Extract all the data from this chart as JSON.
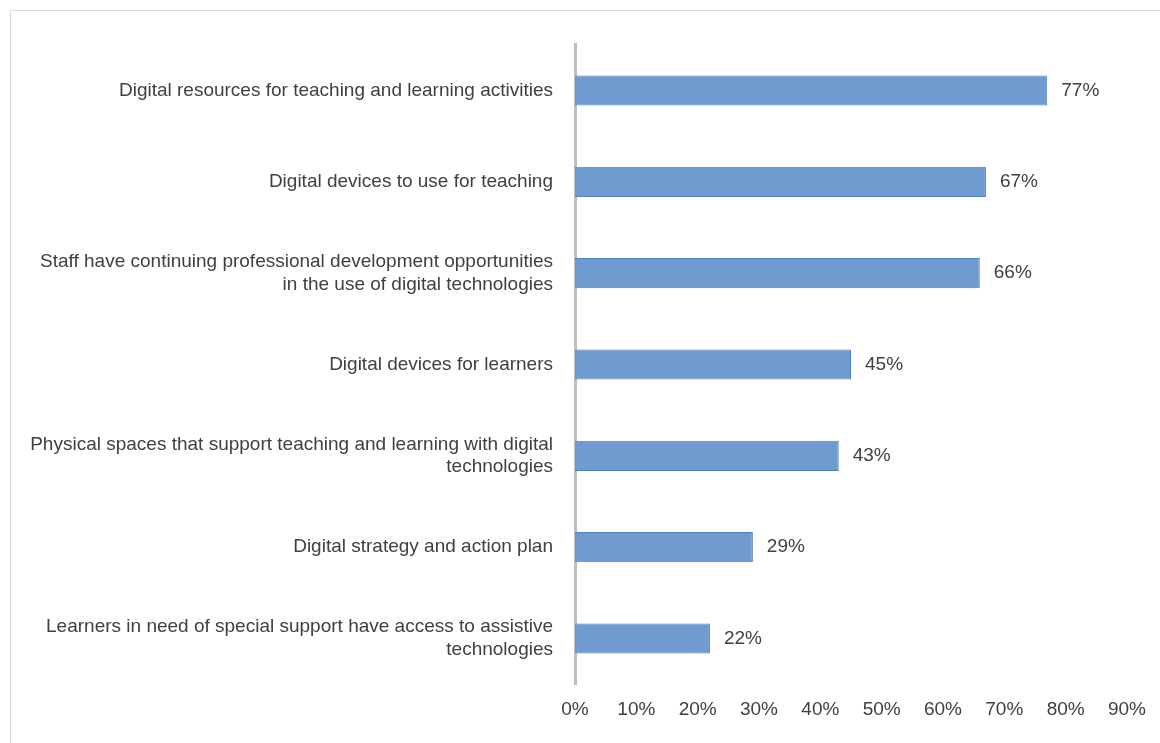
{
  "chart_data": {
    "type": "bar",
    "orientation": "horizontal",
    "categories": [
      "Digital resources for teaching and learning activities",
      "Digital devices to use for teaching",
      "Staff have continuing professional development opportunities in the use of digital technologies",
      "Digital devices for learners",
      "Physical spaces that support teaching and learning with digital technologies",
      "Digital strategy and action plan",
      "Learners in need of special support have access to assistive technologies"
    ],
    "values": [
      77,
      67,
      66,
      45,
      43,
      29,
      22
    ],
    "value_labels": [
      "77%",
      "67%",
      "66%",
      "45%",
      "43%",
      "29%",
      "22%"
    ],
    "color": "#6f9bd0",
    "xlim": [
      0,
      90
    ],
    "xticks": [
      {
        "value": 0,
        "label": "0%"
      },
      {
        "value": 10,
        "label": "10%"
      },
      {
        "value": 20,
        "label": "20%"
      },
      {
        "value": 30,
        "label": "30%"
      },
      {
        "value": 40,
        "label": "40%"
      },
      {
        "value": 50,
        "label": "50%"
      },
      {
        "value": 60,
        "label": "60%"
      },
      {
        "value": 70,
        "label": "70%"
      },
      {
        "value": 80,
        "label": "80%"
      },
      {
        "value": 90,
        "label": "90%"
      }
    ],
    "grid": false,
    "legend": false
  }
}
